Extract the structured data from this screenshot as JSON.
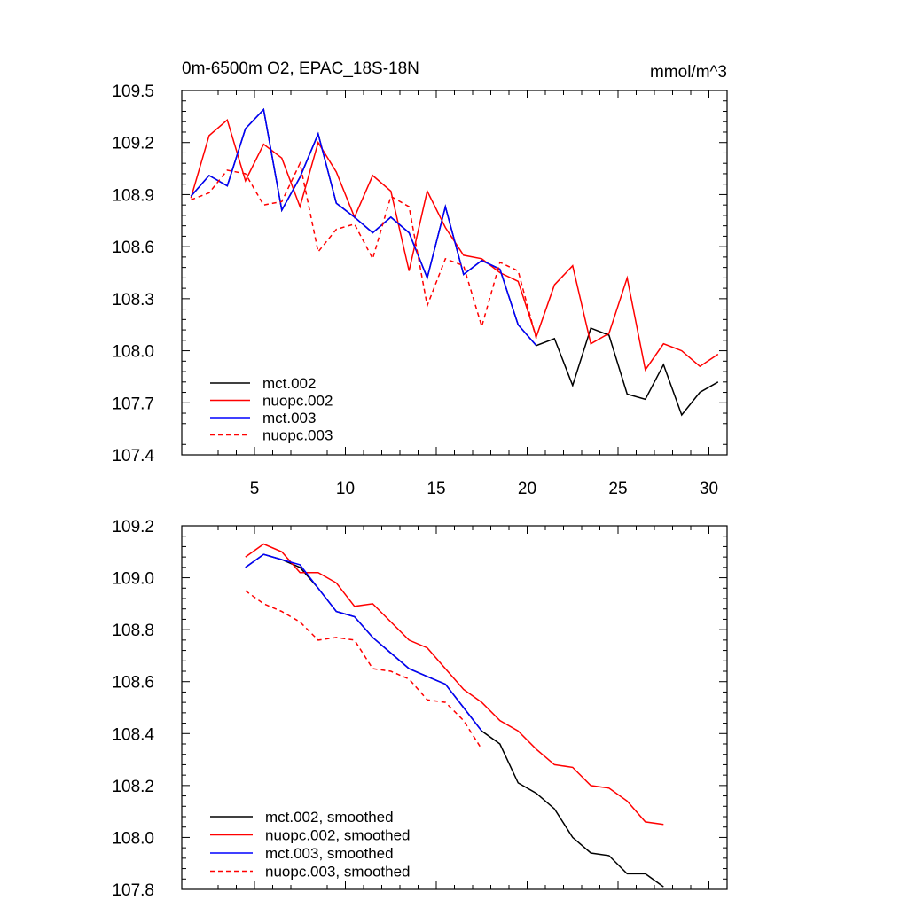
{
  "chart_data": [
    {
      "type": "line",
      "title": "0m-6500m O2, EPAC_18S-18N",
      "units": "mmol/m^3",
      "xlim": [
        1,
        31
      ],
      "ylim": [
        107.4,
        109.5
      ],
      "xticks": [
        5,
        10,
        15,
        20,
        25,
        30
      ],
      "yticks": [
        107.4,
        107.7,
        108.0,
        108.3,
        108.6,
        108.9,
        109.2,
        109.5
      ],
      "ytick_labels": [
        "107.4",
        "107.7",
        "108.0",
        "108.3",
        "108.6",
        "108.9",
        "109.2",
        "109.5"
      ],
      "legend_position": "bottom-left",
      "series": [
        {
          "name": "mct.002",
          "color": "#000000",
          "dash": "solid",
          "x": [
            1.5,
            2.5,
            3.5,
            4.5,
            5.5,
            6.5,
            7.5,
            8.5,
            9.5,
            10.5,
            11.5,
            12.5,
            13.5,
            14.5,
            15.5,
            16.5,
            17.5,
            18.5,
            19.5,
            20.5,
            21.5,
            22.5,
            23.5,
            24.5,
            25.5,
            26.5,
            27.5,
            28.5,
            29.5,
            30.5
          ],
          "values": [
            108.89,
            109.01,
            108.95,
            109.28,
            109.39,
            108.81,
            109.0,
            109.25,
            108.85,
            108.77,
            108.68,
            108.77,
            108.68,
            108.42,
            108.83,
            108.44,
            108.52,
            108.47,
            108.15,
            108.03,
            108.07,
            107.8,
            108.13,
            108.09,
            107.75,
            107.72,
            107.92,
            107.63,
            107.76,
            107.82
          ]
        },
        {
          "name": "nuopc.002",
          "color": "#ff0000",
          "dash": "solid",
          "x": [
            1.5,
            2.5,
            3.5,
            4.5,
            5.5,
            6.5,
            7.5,
            8.5,
            9.5,
            10.5,
            11.5,
            12.5,
            13.5,
            14.5,
            15.5,
            16.5,
            17.5,
            18.5,
            19.5,
            20.5,
            21.5,
            22.5,
            23.5,
            24.5,
            25.5,
            26.5,
            27.5,
            28.5,
            29.5,
            30.5
          ],
          "values": [
            108.88,
            109.24,
            109.33,
            108.98,
            109.19,
            109.11,
            108.83,
            109.2,
            109.03,
            108.77,
            109.01,
            108.92,
            108.46,
            108.92,
            108.71,
            108.55,
            108.53,
            108.45,
            108.4,
            108.08,
            108.38,
            108.49,
            108.04,
            108.1,
            108.42,
            107.89,
            108.04,
            108.0,
            107.91,
            107.98
          ]
        },
        {
          "name": "mct.003",
          "color": "#0000ff",
          "dash": "solid",
          "x": [
            1.5,
            2.5,
            3.5,
            4.5,
            5.5,
            6.5,
            7.5,
            8.5,
            9.5,
            10.5,
            11.5,
            12.5,
            13.5,
            14.5,
            15.5,
            16.5,
            17.5,
            18.5,
            19.5,
            20.5
          ],
          "values": [
            108.89,
            109.01,
            108.95,
            109.28,
            109.39,
            108.81,
            109.0,
            109.25,
            108.85,
            108.77,
            108.68,
            108.77,
            108.68,
            108.42,
            108.83,
            108.44,
            108.52,
            108.47,
            108.15,
            108.03
          ]
        },
        {
          "name": "nuopc.003",
          "color": "#ff0000",
          "dash": "dashed",
          "x": [
            1.5,
            2.5,
            3.5,
            4.5,
            5.5,
            6.5,
            7.5,
            8.5,
            9.5,
            10.5,
            11.5,
            12.5,
            13.5,
            14.5,
            15.5,
            16.5,
            17.5,
            18.5,
            19.5,
            20.5
          ],
          "values": [
            108.87,
            108.91,
            109.04,
            109.02,
            108.84,
            108.86,
            109.08,
            108.57,
            108.7,
            108.73,
            108.53,
            108.89,
            108.83,
            108.26,
            108.53,
            108.49,
            108.14,
            108.51,
            108.46,
            108.07
          ]
        }
      ]
    },
    {
      "type": "line",
      "title": "",
      "xlim": [
        1,
        31
      ],
      "ylim": [
        107.8,
        109.2
      ],
      "xticks": [
        5,
        10,
        15,
        20,
        25,
        30
      ],
      "yticks": [
        107.8,
        108.0,
        108.2,
        108.4,
        108.6,
        108.8,
        109.0,
        109.2
      ],
      "ytick_labels": [
        "107.8",
        "108.0",
        "108.2",
        "108.4",
        "108.6",
        "108.8",
        "109.0",
        "109.2"
      ],
      "legend_position": "bottom-left",
      "series": [
        {
          "name": "mct.002, smoothed",
          "color": "#000000",
          "dash": "solid",
          "x": [
            4.5,
            5.5,
            6.5,
            7.5,
            8.5,
            9.5,
            10.5,
            11.5,
            12.5,
            13.5,
            14.5,
            15.5,
            16.5,
            17.5,
            18.5,
            19.5,
            20.5,
            21.5,
            22.5,
            23.5,
            24.5,
            25.5,
            26.5,
            27.5
          ],
          "values": [
            109.04,
            109.09,
            109.07,
            109.04,
            108.96,
            108.87,
            108.85,
            108.77,
            108.71,
            108.65,
            108.62,
            108.59,
            108.5,
            108.41,
            108.36,
            108.21,
            108.17,
            108.11,
            108.0,
            107.94,
            107.93,
            107.86,
            107.86,
            107.81
          ]
        },
        {
          "name": "nuopc.002, smoothed",
          "color": "#ff0000",
          "dash": "solid",
          "x": [
            4.5,
            5.5,
            6.5,
            7.5,
            8.5,
            9.5,
            10.5,
            11.5,
            12.5,
            13.5,
            14.5,
            15.5,
            16.5,
            17.5,
            18.5,
            19.5,
            20.5,
            21.5,
            22.5,
            23.5,
            24.5,
            25.5,
            26.5,
            27.5
          ],
          "values": [
            109.08,
            109.13,
            109.1,
            109.02,
            109.02,
            108.98,
            108.89,
            108.9,
            108.83,
            108.76,
            108.73,
            108.65,
            108.57,
            108.52,
            108.45,
            108.41,
            108.34,
            108.28,
            108.27,
            108.2,
            108.19,
            108.14,
            108.06,
            108.05
          ]
        },
        {
          "name": "mct.003, smoothed",
          "color": "#0000ff",
          "dash": "solid",
          "x": [
            4.5,
            5.5,
            6.5,
            7.5,
            8.5,
            9.5,
            10.5,
            11.5,
            12.5,
            13.5,
            14.5,
            15.5,
            16.5,
            17.5
          ],
          "values": [
            109.04,
            109.09,
            109.07,
            109.05,
            108.96,
            108.87,
            108.85,
            108.77,
            108.71,
            108.65,
            108.62,
            108.59,
            108.5,
            108.41
          ]
        },
        {
          "name": "nuopc.003, smoothed",
          "color": "#ff0000",
          "dash": "dashed",
          "x": [
            4.5,
            5.5,
            6.5,
            7.5,
            8.5,
            9.5,
            10.5,
            11.5,
            12.5,
            13.5,
            14.5,
            15.5,
            16.5,
            17.5
          ],
          "values": [
            108.95,
            108.9,
            108.87,
            108.83,
            108.76,
            108.77,
            108.76,
            108.65,
            108.64,
            108.61,
            108.53,
            108.52,
            108.45,
            108.34
          ]
        }
      ]
    }
  ]
}
